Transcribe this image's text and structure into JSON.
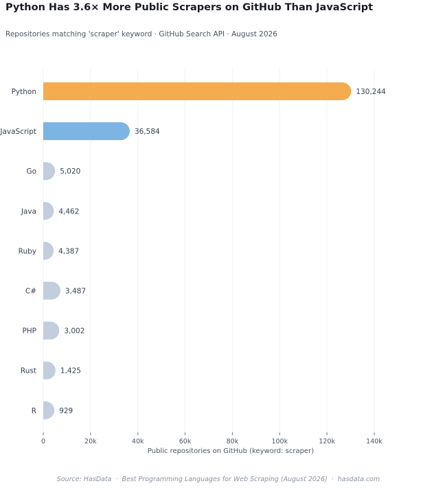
{
  "title": "Python Has 3.6× More Public Scrapers on GitHub Than JavaScript",
  "subtitle": "Repositories matching 'scraper' keyword · GitHub Search API · August 2026",
  "source": {
    "prefix": "Source: HasData",
    "separator": "·",
    "article": "Best Programming Languages for Web Scraping (August 2026)",
    "site": "hasdata.com"
  },
  "colors": {
    "python": "#f4ac4f",
    "javascript": "#7cb4e3",
    "other": "#c2cedd",
    "grid": "#eef0f3"
  },
  "chart_data": {
    "type": "bar",
    "orientation": "horizontal",
    "categories": [
      "Python",
      "JavaScript",
      "Go",
      "Java",
      "Ruby",
      "C#",
      "PHP",
      "Rust",
      "R"
    ],
    "values": [
      130244,
      36584,
      5020,
      4462,
      4387,
      3487,
      3002,
      1425,
      929
    ],
    "value_labels": [
      "130,244",
      "36,584",
      "5,020",
      "4,462",
      "4,387",
      "3,487",
      "3,002",
      "1,425",
      "929"
    ],
    "xlabel": "Public repositories on GitHub (keyword: scraper)",
    "ylabel": "",
    "xlim": [
      0,
      140000
    ],
    "xticks": [
      0,
      20000,
      40000,
      60000,
      80000,
      100000,
      120000,
      140000
    ],
    "xtick_labels": [
      "0",
      "20k",
      "40k",
      "60k",
      "80k",
      "100k",
      "120k",
      "140k"
    ],
    "grid": "vertical"
  }
}
